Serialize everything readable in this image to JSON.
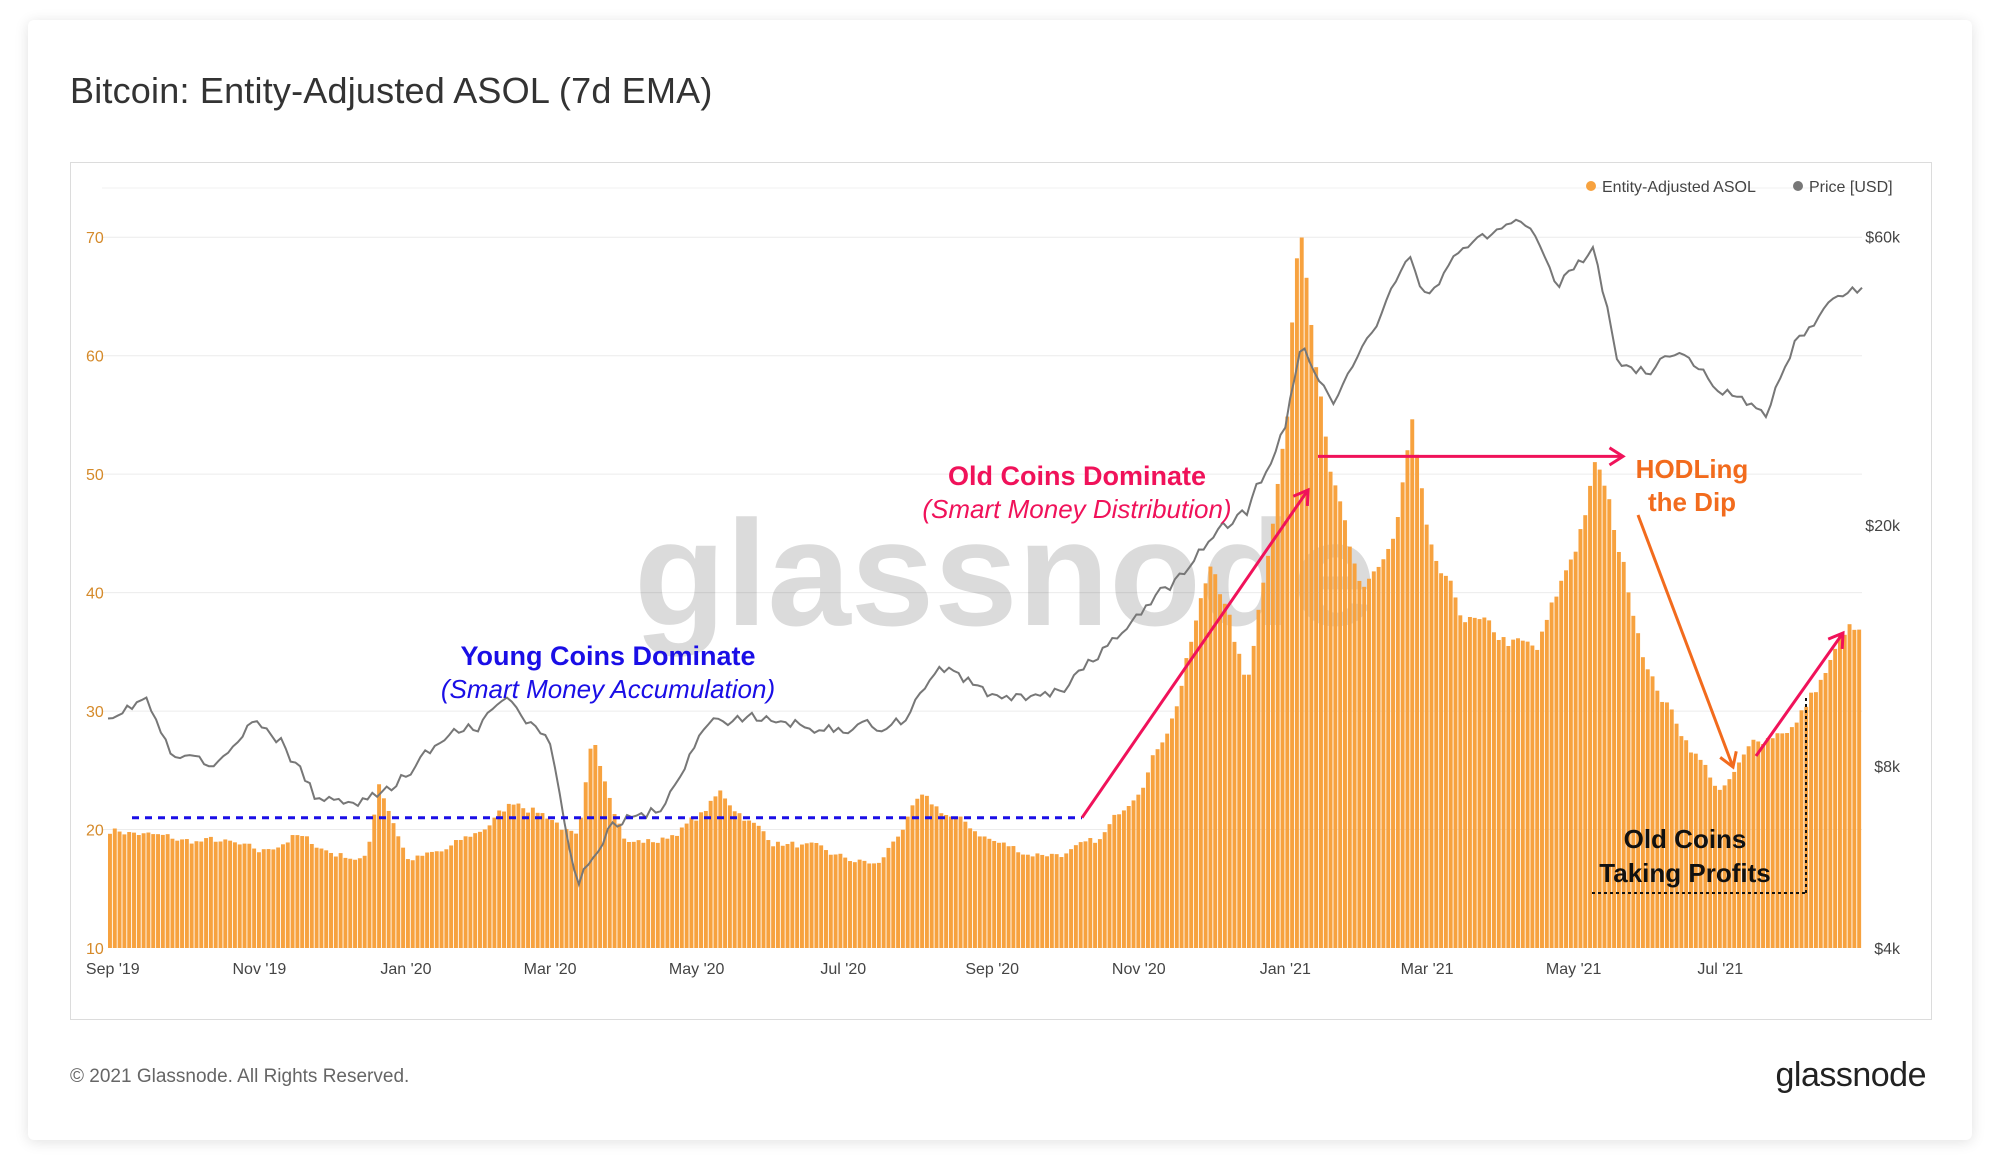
{
  "header": {
    "title": "Bitcoin: Entity-Adjusted ASOL (7d EMA)"
  },
  "footer": {
    "copyright": "© 2021 Glassnode. All Rights Reserved.",
    "brand": "glassnode"
  },
  "watermark": "glassnode",
  "colors": {
    "asol": "#f7a23f",
    "price": "#777777",
    "young": "#1a0ee6",
    "old": "#f0125a",
    "hodl": "#f26b1d",
    "profit": "#111111"
  },
  "chart_data": {
    "type": "bar",
    "title": "Bitcoin: Entity-Adjusted ASOL (7d EMA)",
    "legend_placement": "top-right",
    "grid": true,
    "x_range": [
      "2019-08-30",
      "2021-08-29"
    ],
    "x_ticks": [
      "Sep '19",
      "Nov '19",
      "Jan '20",
      "Mar '20",
      "May '20",
      "Jul '20",
      "Sep '20",
      "Nov '20",
      "Jan '21",
      "Mar '21",
      "May '21",
      "Jul '21"
    ],
    "y_left": {
      "range": [
        10,
        75
      ],
      "ticks": [
        "10",
        "20",
        "30",
        "40",
        "50",
        "60",
        "70"
      ]
    },
    "y_right": {
      "scale": "log",
      "range": [
        4000,
        75000
      ],
      "ticks": [
        "$4k",
        "$8k",
        "$20k",
        "$60k"
      ]
    },
    "series": [
      {
        "name": "Entity-Adjusted ASOL",
        "type": "bar",
        "axis": "left",
        "points": [
          [
            "2019-09-01",
            20
          ],
          [
            "2019-09-15",
            19.5
          ],
          [
            "2019-10-01",
            19
          ],
          [
            "2019-10-15",
            19
          ],
          [
            "2019-11-01",
            18
          ],
          [
            "2019-11-15",
            19.5
          ],
          [
            "2019-12-01",
            18
          ],
          [
            "2019-12-15",
            17.5
          ],
          [
            "2019-12-20",
            24
          ],
          [
            "2020-01-01",
            17.5
          ],
          [
            "2020-01-15",
            18
          ],
          [
            "2020-02-01",
            20
          ],
          [
            "2020-02-15",
            22.5
          ],
          [
            "2020-03-01",
            21
          ],
          [
            "2020-03-12",
            19
          ],
          [
            "2020-03-18",
            27.5
          ],
          [
            "2020-04-01",
            19
          ],
          [
            "2020-04-15",
            19
          ],
          [
            "2020-05-01",
            21
          ],
          [
            "2020-05-10",
            23
          ],
          [
            "2020-06-01",
            19
          ],
          [
            "2020-06-15",
            18.5
          ],
          [
            "2020-07-01",
            17.5
          ],
          [
            "2020-07-15",
            17
          ],
          [
            "2020-08-01",
            22.5
          ],
          [
            "2020-08-15",
            21
          ],
          [
            "2020-09-01",
            19
          ],
          [
            "2020-09-15",
            18
          ],
          [
            "2020-10-01",
            18
          ],
          [
            "2020-10-15",
            19
          ],
          [
            "2020-11-01",
            24
          ],
          [
            "2020-11-15",
            30
          ],
          [
            "2020-12-01",
            43
          ],
          [
            "2020-12-15",
            32
          ],
          [
            "2021-01-01",
            55
          ],
          [
            "2021-01-06",
            72
          ],
          [
            "2021-01-20",
            50
          ],
          [
            "2021-02-01",
            39
          ],
          [
            "2021-02-15",
            45
          ],
          [
            "2021-02-22",
            54
          ],
          [
            "2021-03-01",
            43
          ],
          [
            "2021-03-15",
            38
          ],
          [
            "2021-04-01",
            36
          ],
          [
            "2021-04-15",
            35
          ],
          [
            "2021-05-01",
            44
          ],
          [
            "2021-05-10",
            51
          ],
          [
            "2021-05-20",
            43
          ],
          [
            "2021-06-01",
            33
          ],
          [
            "2021-06-15",
            28
          ],
          [
            "2021-07-01",
            23
          ],
          [
            "2021-07-15",
            27.5
          ],
          [
            "2021-08-01",
            29
          ],
          [
            "2021-08-15",
            34
          ],
          [
            "2021-08-22",
            37
          ],
          [
            "2021-08-29",
            36
          ]
        ]
      },
      {
        "name": "Price [USD]",
        "type": "line",
        "axis": "right",
        "points": [
          [
            "2019-09-01",
            9800
          ],
          [
            "2019-09-15",
            10300
          ],
          [
            "2019-09-25",
            8300
          ],
          [
            "2019-10-15",
            8000
          ],
          [
            "2019-10-26",
            9400
          ],
          [
            "2019-11-10",
            8800
          ],
          [
            "2019-11-25",
            7000
          ],
          [
            "2019-12-15",
            7100
          ],
          [
            "2019-12-25",
            7300
          ],
          [
            "2020-01-15",
            8700
          ],
          [
            "2020-02-01",
            9400
          ],
          [
            "2020-02-12",
            10300
          ],
          [
            "2020-03-01",
            8600
          ],
          [
            "2020-03-12",
            5000
          ],
          [
            "2020-03-25",
            6400
          ],
          [
            "2020-04-15",
            6800
          ],
          [
            "2020-05-01",
            8800
          ],
          [
            "2020-05-10",
            9600
          ],
          [
            "2020-06-01",
            9500
          ],
          [
            "2020-07-01",
            9200
          ],
          [
            "2020-07-25",
            9500
          ],
          [
            "2020-08-10",
            11800
          ],
          [
            "2020-09-05",
            10200
          ],
          [
            "2020-10-01",
            10700
          ],
          [
            "2020-10-21",
            12800
          ],
          [
            "2020-11-15",
            16000
          ],
          [
            "2020-12-01",
            19000
          ],
          [
            "2020-12-16",
            21000
          ],
          [
            "2021-01-01",
            29000
          ],
          [
            "2021-01-08",
            40000
          ],
          [
            "2021-01-22",
            32000
          ],
          [
            "2021-02-10",
            45000
          ],
          [
            "2021-02-21",
            57000
          ],
          [
            "2021-03-01",
            47000
          ],
          [
            "2021-03-15",
            58000
          ],
          [
            "2021-04-14",
            63000
          ],
          [
            "2021-04-25",
            50000
          ],
          [
            "2021-05-10",
            57000
          ],
          [
            "2021-05-19",
            38000
          ],
          [
            "2021-06-01",
            36000
          ],
          [
            "2021-06-15",
            39000
          ],
          [
            "2021-07-01",
            34000
          ],
          [
            "2021-07-20",
            30000
          ],
          [
            "2021-08-01",
            40000
          ],
          [
            "2021-08-15",
            46000
          ],
          [
            "2021-08-29",
            49000
          ]
        ]
      }
    ],
    "annotations": [
      {
        "id": "young",
        "line1": "Young Coins Dominate",
        "line2": "(Smart Money Accumulation)",
        "level": 21
      },
      {
        "id": "old",
        "line1": "Old Coins Dominate",
        "line2": "(Smart Money Distribution)",
        "level": 51.5
      },
      {
        "id": "hodl",
        "line1": "HODLing",
        "line2": "the Dip"
      },
      {
        "id": "profit",
        "line1": "Old Coins",
        "line2": "Taking Profits"
      }
    ]
  }
}
